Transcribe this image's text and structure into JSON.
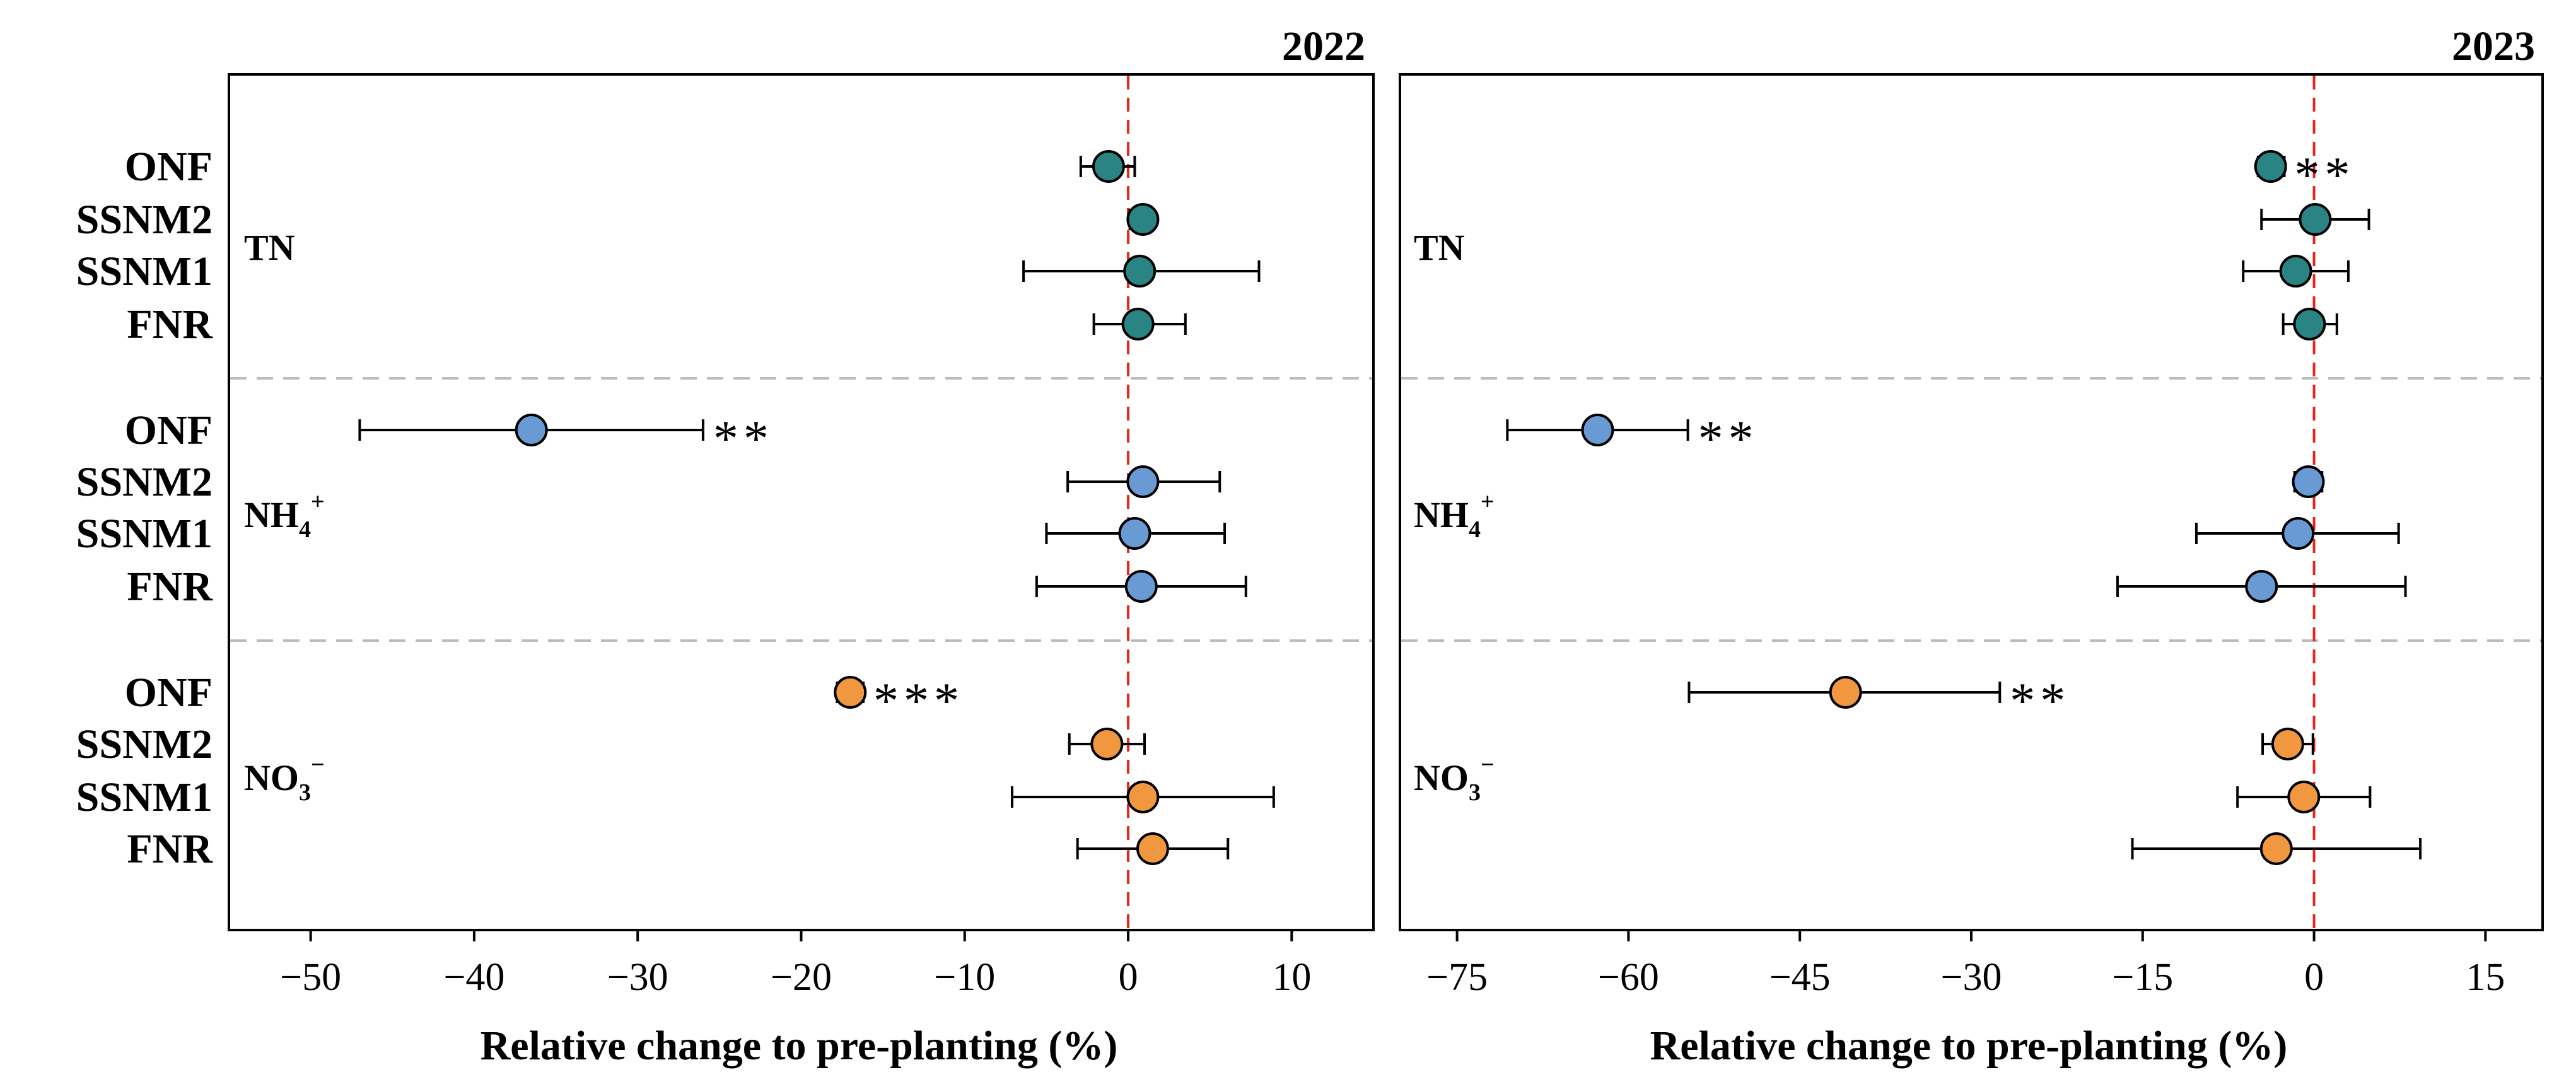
{
  "chart_data": [
    {
      "type": "scatter",
      "title": "2022",
      "xlabel": "Relative change to pre-planting (%)",
      "xlim": [
        -55,
        15
      ],
      "xticks": [
        -50,
        -40,
        -30,
        -20,
        -10,
        0,
        10
      ],
      "xtick_labels": [
        "−50",
        "−40",
        "−30",
        "−20",
        "−10",
        "0",
        "10"
      ],
      "groups": [
        {
          "name": "TN",
          "color": "#2a8483",
          "points": [
            {
              "treatment": "ONF",
              "mean": -1.2,
              "low": -2.9,
              "high": 0.4,
              "sig": ""
            },
            {
              "treatment": "SSNM2",
              "mean": 0.9,
              "low": 0.1,
              "high": 1.6,
              "sig": ""
            },
            {
              "treatment": "SSNM1",
              "mean": 0.7,
              "low": -6.4,
              "high": 8.0,
              "sig": ""
            },
            {
              "treatment": "FNR",
              "mean": 0.6,
              "low": -2.1,
              "high": 3.5,
              "sig": ""
            }
          ]
        },
        {
          "name": "NH4+",
          "color": "#6a9ad4",
          "points": [
            {
              "treatment": "ONF",
              "mean": -36.5,
              "low": -47.0,
              "high": -26.0,
              "sig": "**"
            },
            {
              "treatment": "SSNM2",
              "mean": 0.9,
              "low": -3.7,
              "high": 5.6,
              "sig": ""
            },
            {
              "treatment": "SSNM1",
              "mean": 0.4,
              "low": -5.0,
              "high": 5.9,
              "sig": ""
            },
            {
              "treatment": "FNR",
              "mean": 0.8,
              "low": -5.6,
              "high": 7.2,
              "sig": ""
            }
          ]
        },
        {
          "name": "NO3−",
          "color": "#f0973f",
          "points": [
            {
              "treatment": "ONF",
              "mean": -17.0,
              "low": -17.8,
              "high": -16.2,
              "sig": "***"
            },
            {
              "treatment": "SSNM2",
              "mean": -1.3,
              "low": -3.6,
              "high": 1.0,
              "sig": ""
            },
            {
              "treatment": "SSNM1",
              "mean": 0.9,
              "low": -7.1,
              "high": 8.9,
              "sig": ""
            },
            {
              "treatment": "FNR",
              "mean": 1.5,
              "low": -3.1,
              "high": 6.1,
              "sig": ""
            }
          ]
        }
      ]
    },
    {
      "type": "scatter",
      "title": "2023",
      "xlabel": "Relative change to pre-planting (%)",
      "xlim": [
        -80,
        20
      ],
      "xticks": [
        -75,
        -60,
        -45,
        -30,
        -15,
        0,
        15
      ],
      "xtick_labels": [
        "−75",
        "−60",
        "−45",
        "−30",
        "−15",
        "0",
        "15"
      ],
      "groups": [
        {
          "name": "TN",
          "color": "#2a8483",
          "points": [
            {
              "treatment": "ONF",
              "mean": -3.8,
              "low": -4.9,
              "high": -2.6,
              "sig": "**"
            },
            {
              "treatment": "SSNM2",
              "mean": 0.1,
              "low": -4.6,
              "high": 4.8,
              "sig": ""
            },
            {
              "treatment": "SSNM1",
              "mean": -1.6,
              "low": -6.2,
              "high": 3.0,
              "sig": ""
            },
            {
              "treatment": "FNR",
              "mean": -0.4,
              "low": -2.7,
              "high": 2.0,
              "sig": ""
            }
          ]
        },
        {
          "name": "NH4+",
          "color": "#6a9ad4",
          "points": [
            {
              "treatment": "ONF",
              "mean": -62.7,
              "low": -70.6,
              "high": -54.8,
              "sig": "**"
            },
            {
              "treatment": "SSNM2",
              "mean": -0.5,
              "low": -1.7,
              "high": 0.7,
              "sig": ""
            },
            {
              "treatment": "SSNM1",
              "mean": -1.4,
              "low": -10.3,
              "high": 7.4,
              "sig": ""
            },
            {
              "treatment": "FNR",
              "mean": -4.6,
              "low": -17.2,
              "high": 8.0,
              "sig": ""
            }
          ]
        },
        {
          "name": "NO3−",
          "color": "#f0973f",
          "points": [
            {
              "treatment": "ONF",
              "mean": -41.0,
              "low": -54.7,
              "high": -27.5,
              "sig": "**"
            },
            {
              "treatment": "SSNM2",
              "mean": -2.3,
              "low": -4.5,
              "high": -0.1,
              "sig": ""
            },
            {
              "treatment": "SSNM1",
              "mean": -0.9,
              "low": -6.7,
              "high": 4.9,
              "sig": ""
            },
            {
              "treatment": "FNR",
              "mean": -3.3,
              "low": -15.9,
              "high": 9.3,
              "sig": ""
            }
          ]
        }
      ]
    }
  ],
  "row_labels": [
    "ONF",
    "SSNM2",
    "SSNM1",
    "FNR",
    "ONF",
    "SSNM2",
    "SSNM1",
    "FNR",
    "ONF",
    "SSNM2",
    "SSNM1",
    "FNR"
  ],
  "group_labels": {
    "tn": "TN",
    "nh4": {
      "base": "NH",
      "sub": "4",
      "sup": "+"
    },
    "no3": {
      "base": "NO",
      "sub": "3",
      "sup": "−"
    }
  },
  "colors": {
    "tn": "#2a8483",
    "nh4": "#6a9ad4",
    "no3": "#f0973f",
    "zero_line": "#e8231c",
    "separator": "#bcbcbc"
  }
}
